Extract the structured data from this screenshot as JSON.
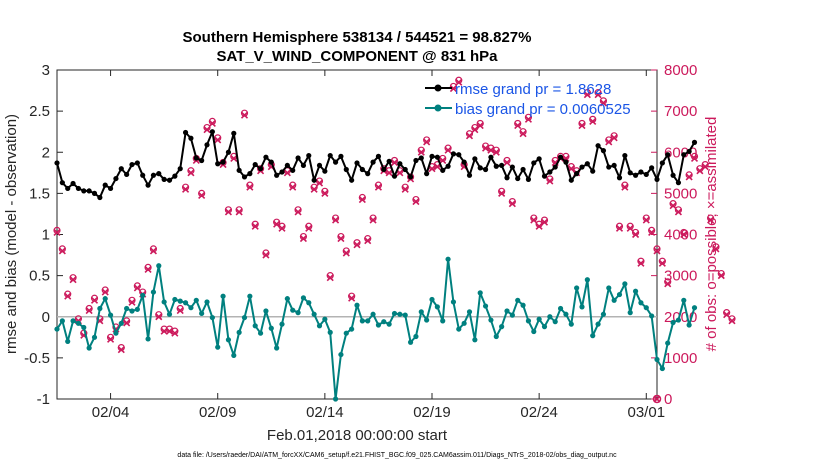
{
  "chart_data": {
    "type": "line",
    "title_line1": "Southern Hemisphere 538134 / 544521 = 98.827%",
    "title_line2": "SAT_V_WIND_COMPONENT @ 831 hPa",
    "xlabel": "Feb.01,2018 00:00:00 start",
    "ylabel_left": "rmse and bias (model - observation)",
    "ylabel_right": "# of obs: o=possible; ×=assimilated",
    "footer": "data file: /Users/raeder/DAI/ATM_forcXX/CAM6_setup/f.e21.FHIST_BGC.f09_025.CAM6assim.011/Diags_NTrS_2018-02/obs_diag_output.nc",
    "xlim": [
      1,
      29
    ],
    "ylim_left": [
      -1,
      3
    ],
    "ylim_right": [
      0,
      8000
    ],
    "x_ticks": [
      3.5,
      8.5,
      13.5,
      18.5,
      23.5,
      28.5
    ],
    "x_tick_labels": [
      "02/04",
      "02/09",
      "02/14",
      "02/19",
      "02/24",
      "03/01"
    ],
    "y_ticks_left": [
      -1,
      -0.5,
      0,
      0.5,
      1,
      1.5,
      2,
      2.5,
      3
    ],
    "y_tick_labels_left": [
      "-1",
      "-0.5",
      "0",
      "0.5",
      "1",
      "1.5",
      "2",
      "2.5",
      "3"
    ],
    "y_ticks_right": [
      0,
      1000,
      2000,
      3000,
      4000,
      5000,
      6000,
      7000,
      8000
    ],
    "y_tick_labels_right": [
      "0",
      "1000",
      "2000",
      "3000",
      "4000",
      "5000",
      "6000",
      "7000",
      "8000"
    ],
    "legend": [
      {
        "name": "rmse grand pr = 1.8628",
        "color": "#000000"
      },
      {
        "name": "bias grand pr = 0.0060525",
        "color": "#00807f"
      }
    ],
    "colors": {
      "rmse": "#000000",
      "bias": "#00807f",
      "obs": "#cc1a5c",
      "zero_line": "#b3b3b3",
      "legend_text": "#1a55e6"
    },
    "start_x": 1.0,
    "step": 0.25,
    "series": [
      {
        "name": "rmse",
        "values": [
          1.87,
          1.63,
          1.56,
          1.62,
          1.56,
          1.53,
          1.53,
          1.5,
          1.45,
          1.6,
          1.56,
          1.68,
          1.8,
          1.73,
          1.85,
          1.87,
          1.72,
          1.6,
          1.72,
          1.74,
          1.67,
          1.66,
          1.71,
          1.8,
          2.24,
          2.17,
          1.93,
          1.9,
          2.09,
          2.25,
          1.86,
          1.88,
          2.0,
          2.23,
          1.78,
          1.7,
          1.74,
          1.85,
          1.8,
          1.94,
          1.88,
          1.72,
          1.76,
          1.84,
          1.78,
          1.93,
          1.84,
          1.96,
          1.66,
          1.84,
          1.77,
          1.96,
          1.88,
          1.95,
          1.79,
          1.66,
          1.87,
          1.79,
          1.74,
          1.88,
          1.95,
          1.79,
          1.89,
          1.71,
          1.86,
          1.79,
          1.7,
          1.9,
          1.93,
          1.74,
          1.95,
          1.94,
          1.78,
          1.83,
          1.98,
          1.97,
          1.88,
          1.72,
          1.92,
          1.81,
          1.79,
          1.94,
          1.83,
          1.84,
          1.69,
          1.82,
          1.68,
          1.79,
          1.67,
          1.87,
          1.92,
          1.71,
          1.76,
          1.82,
          1.94,
          1.88,
          1.66,
          1.74,
          1.82,
          1.86,
          1.77,
          2.08,
          2.02,
          1.82,
          1.84,
          1.69,
          1.96,
          1.75,
          1.72,
          1.76,
          1.73,
          1.81,
          1.67,
          1.87,
          1.97,
          1.72,
          1.63,
          1.97,
          2.01,
          2.12
        ]
      },
      {
        "name": "bias",
        "values": [
          -0.15,
          -0.05,
          -0.3,
          -0.05,
          -0.08,
          -0.13,
          -0.38,
          -0.25,
          0.1,
          0.22,
          0.02,
          -0.2,
          -0.08,
          0.1,
          0.07,
          0.09,
          0.26,
          -0.27,
          0.3,
          0.62,
          0.18,
          0.03,
          0.21,
          0.19,
          0.17,
          0.11,
          0.2,
          0.04,
          0.18,
          -0.01,
          -0.37,
          0.25,
          -0.28,
          -0.47,
          -0.19,
          -0.01,
          0.25,
          -0.11,
          -0.2,
          0.07,
          -0.14,
          -0.38,
          -0.09,
          0.22,
          0.08,
          0.05,
          0.23,
          0.17,
          0.03,
          -0.11,
          -0.03,
          -0.19,
          -1.0,
          -0.46,
          -0.2,
          -0.15,
          0.14,
          -0.05,
          -0.05,
          0.03,
          -0.1,
          -0.06,
          -0.09,
          0.04,
          0.03,
          0.02,
          -0.31,
          -0.24,
          0.06,
          -0.04,
          0.21,
          0.12,
          -0.05,
          0.7,
          0.18,
          -0.15,
          -0.08,
          0.06,
          -0.28,
          0.29,
          0.13,
          -0.04,
          -0.24,
          -0.12,
          0.07,
          0.02,
          0.2,
          0.14,
          -0.05,
          -0.18,
          -0.03,
          -0.12,
          0.0,
          -0.06,
          0.1,
          0.03,
          -0.09,
          0.35,
          0.12,
          0.45,
          -0.23,
          -0.09,
          0.03,
          0.35,
          0.2,
          0.27,
          0.4,
          0.05,
          0.31,
          0.17,
          0.11,
          0.01,
          -0.52,
          -0.63,
          -0.32,
          -0.07,
          -0.04,
          0.2,
          -0.1,
          0.11
        ]
      },
      {
        "name": "obs_possible",
        "values": [
          4100,
          3650,
          2550,
          2950,
          1950,
          1600,
          2200,
          2450,
          1950,
          2650,
          1500,
          1750,
          1250,
          1900,
          2400,
          2750,
          2600,
          3200,
          3650,
          2050,
          1700,
          1700,
          1650,
          2200,
          5150,
          5550,
          5850,
          5000,
          6600,
          6750,
          6350,
          5750,
          4600,
          5900,
          4600,
          6950,
          5200,
          4250,
          5600,
          3550,
          5700,
          4300,
          4200,
          5550,
          5200,
          4600,
          3950,
          4200,
          5150,
          5300,
          5050,
          3000,
          4400,
          3950,
          3600,
          2500,
          3800,
          4900,
          3900,
          4400,
          5200,
          5600,
          5550,
          5800,
          5550,
          5150,
          5400,
          4850,
          6050,
          6300,
          5650,
          5700,
          5850,
          6100,
          7600,
          7750,
          5700,
          6450,
          6600,
          6700,
          6150,
          6100,
          6050,
          5050,
          5800,
          4800,
          6700,
          6500,
          6850,
          4400,
          4250,
          4350,
          5350,
          5800,
          5900,
          5900,
          5650,
          5550,
          6700,
          7450,
          6800,
          7450,
          7250,
          6300,
          6400,
          4200,
          5200,
          4200,
          4050,
          3350,
          4400,
          4100,
          3650,
          3350,
          2850,
          4750,
          4600,
          4050,
          5450,
          5900,
          5600,
          5700,
          4400,
          3700,
          3050,
          2100,
          1950
        ]
      },
      {
        "name": "obs_assimilated",
        "values": [
          4050,
          3600,
          2500,
          2900,
          1900,
          1550,
          2150,
          2400,
          1900,
          2600,
          1450,
          1700,
          1200,
          1850,
          2350,
          2700,
          2550,
          3150,
          3600,
          2000,
          1650,
          1650,
          1600,
          2150,
          5100,
          5500,
          5800,
          4950,
          6550,
          6700,
          6300,
          5700,
          4550,
          5850,
          4550,
          6900,
          5150,
          4200,
          5550,
          3500,
          5650,
          4250,
          4150,
          5500,
          5150,
          4550,
          3900,
          4150,
          5100,
          5250,
          5000,
          2950,
          4350,
          3900,
          3550,
          2450,
          3750,
          4850,
          3850,
          4350,
          5150,
          5550,
          5500,
          5750,
          5500,
          5100,
          5350,
          4800,
          6000,
          6250,
          5600,
          5650,
          5800,
          6050,
          7550,
          7700,
          5650,
          6400,
          6550,
          6650,
          6100,
          6050,
          6000,
          5000,
          5750,
          4750,
          6650,
          6450,
          6800,
          4350,
          4200,
          4300,
          5300,
          5750,
          5850,
          5850,
          5600,
          5500,
          6650,
          7400,
          6750,
          7400,
          7200,
          6250,
          6350,
          4150,
          5150,
          4150,
          4000,
          3300,
          4350,
          4050,
          3600,
          3300,
          2800,
          4700,
          4550,
          4000,
          5400,
          5850,
          5550,
          5650,
          4350,
          3650,
          3000,
          2050,
          1900
        ]
      }
    ],
    "last_obs_zero": {
      "x": 29,
      "value": 0
    }
  }
}
